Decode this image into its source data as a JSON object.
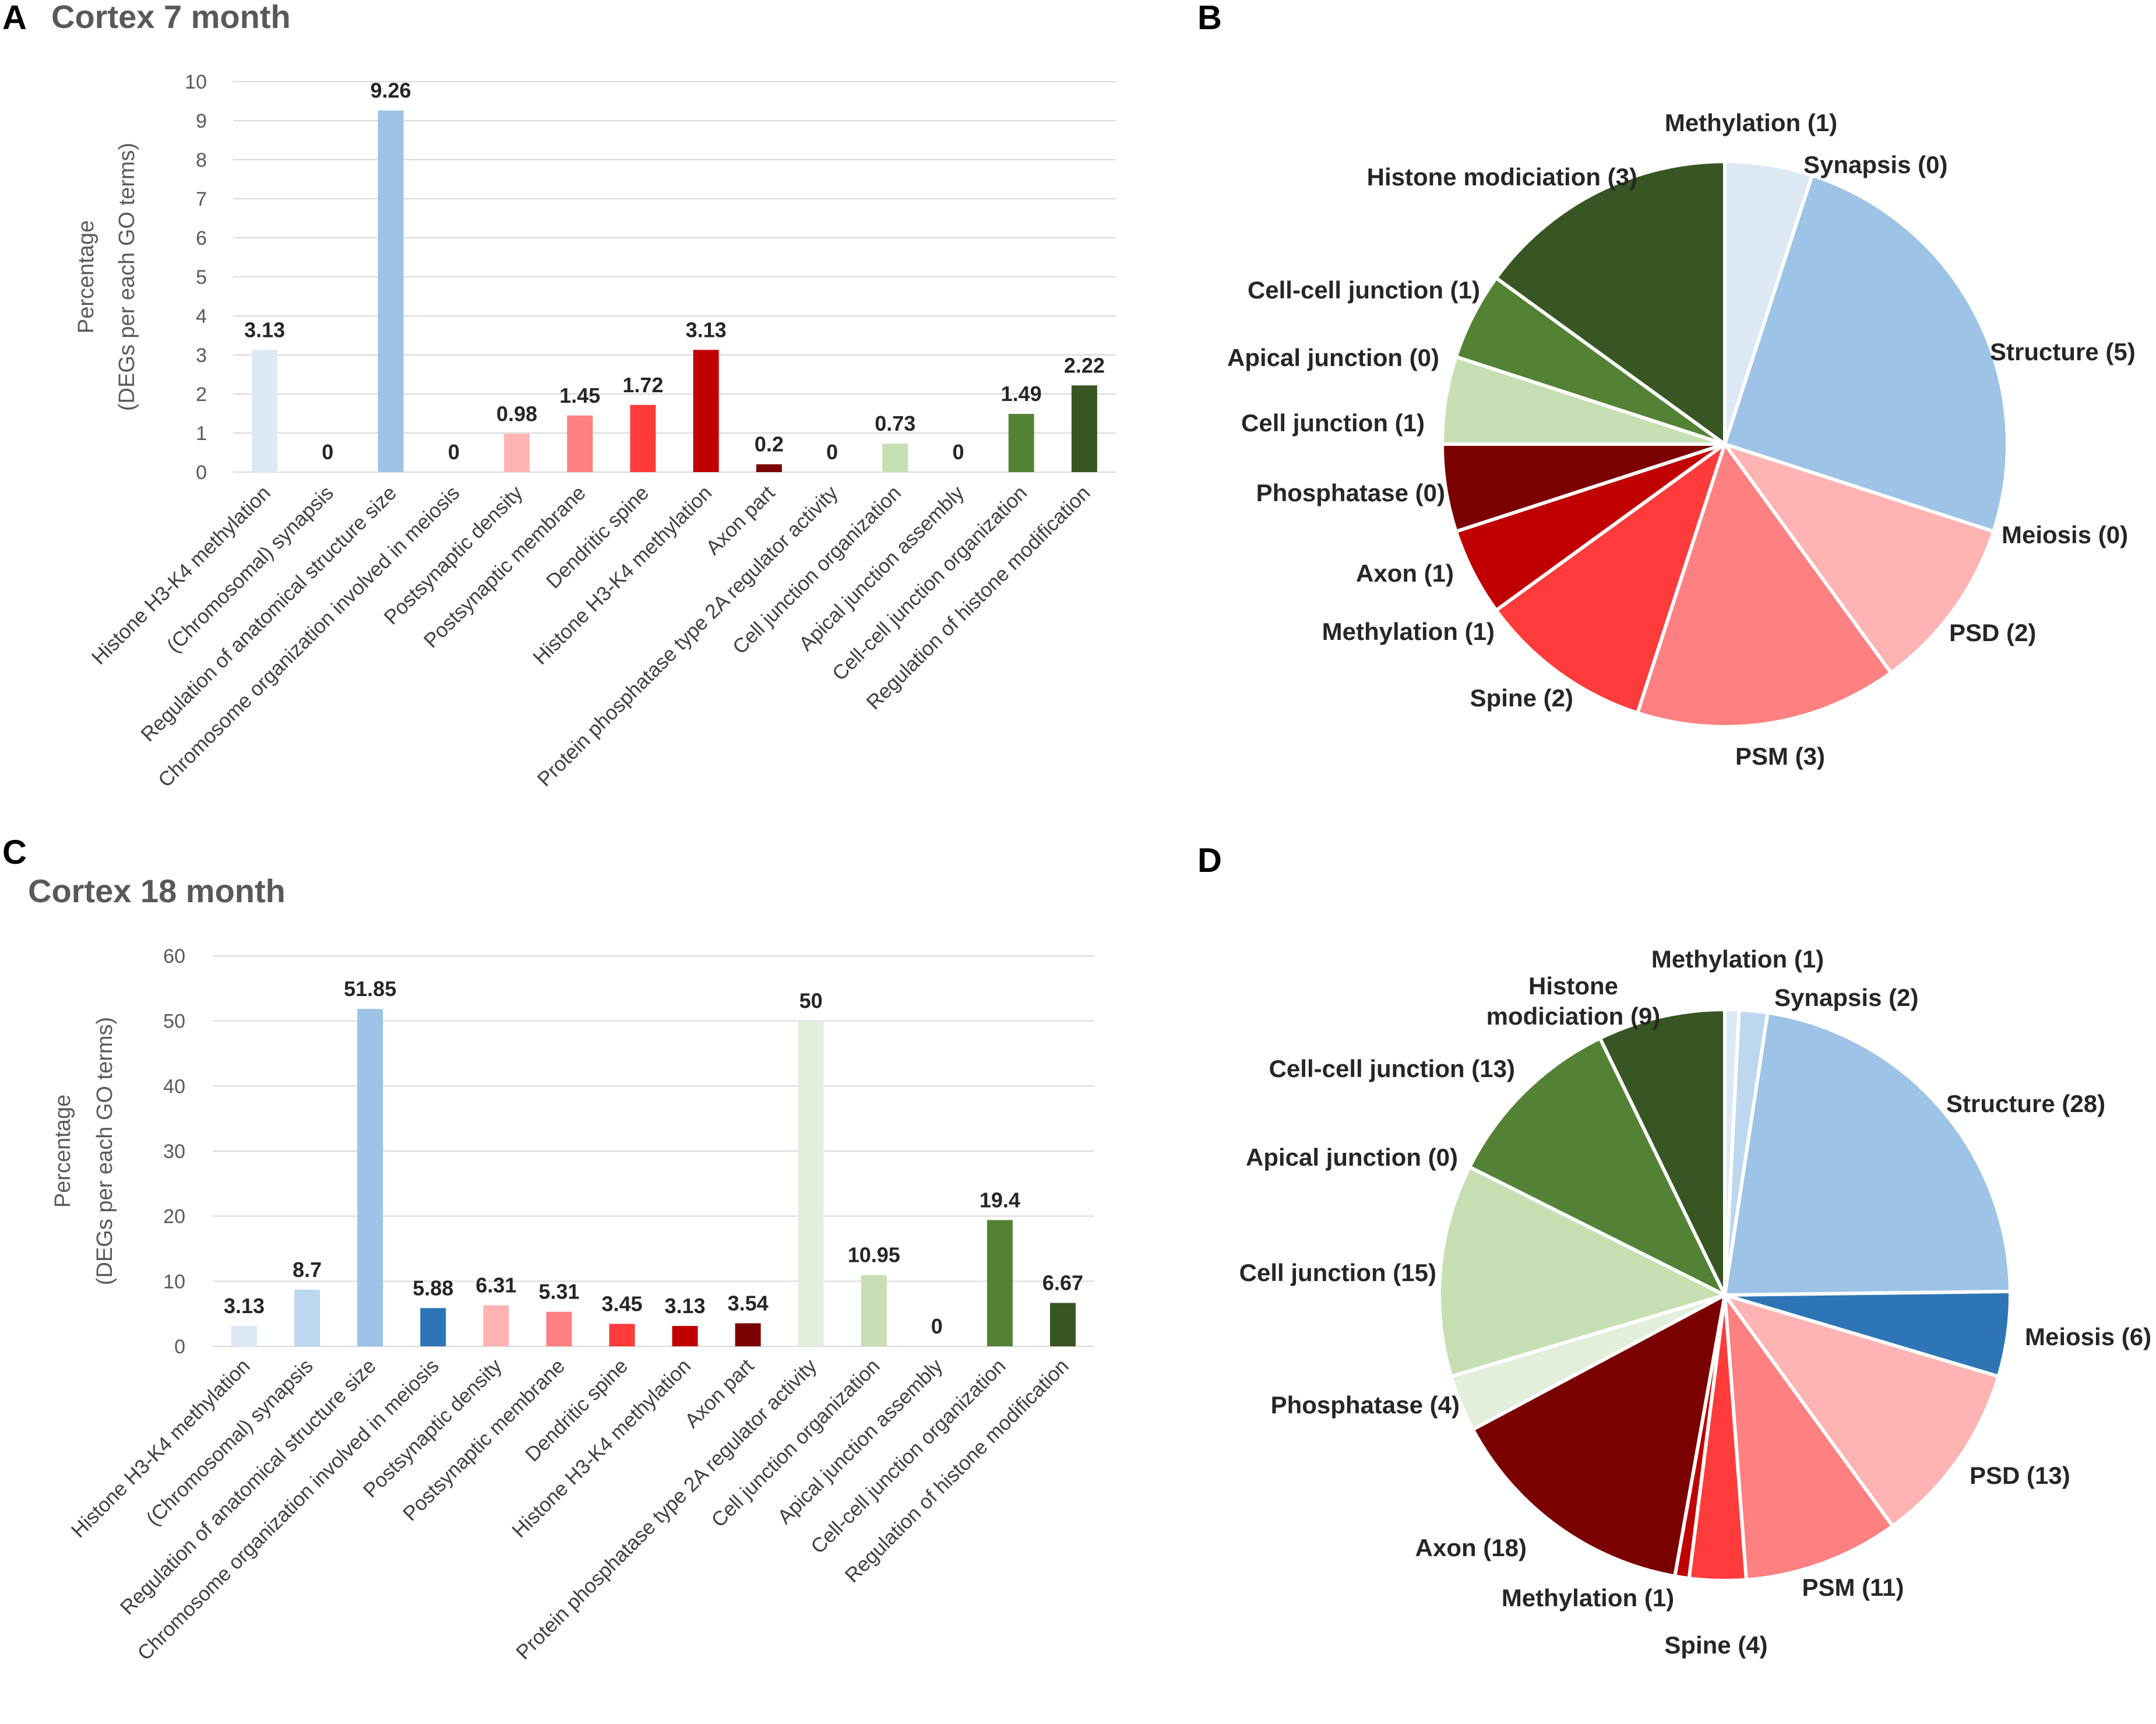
{
  "panels": {
    "A": {
      "letter": "A",
      "title": "Cortex 7 month"
    },
    "B": {
      "letter": "B"
    },
    "C": {
      "letter": "C",
      "title": "Cortex 18 month"
    },
    "D": {
      "letter": "D"
    }
  },
  "palette": [
    "#dde8f5",
    "#bdd7ee",
    "#9dc3e6",
    "#2e75b6",
    "#ffb3b3",
    "#ff8080",
    "#ff3b3b",
    "#c00000",
    "#7b0000",
    "#e2efda",
    "#c6e0b4",
    "#a9d08e",
    "#548235",
    "#375623"
  ],
  "chart_data": [
    {
      "id": "A",
      "type": "bar",
      "title": "Cortex 7 month",
      "ylabel_line1": "Percentage",
      "ylabel_line2": "(DEGs per each GO terms)",
      "ylim": [
        0,
        10
      ],
      "yticks": [
        "0",
        "1",
        "2",
        "3",
        "4",
        "5",
        "6",
        "7",
        "8",
        "9",
        "10"
      ],
      "categories": [
        "Histone H3-K4 methylation",
        "(Chromosomal) synapsis",
        "Regulation of anatomical structure size",
        "Chromosome organization involved in meiosis",
        "Postsynaptic density",
        "Postsynaptic membrane",
        "Dendritic spine",
        "Histone H3-K4 methylation",
        "Axon part",
        "Protein phosphatase type 2A regulator activity",
        "Cell junction organization",
        "Apical junction assembly",
        "Cell-cell junction organization",
        "Regulation of histone modification"
      ],
      "values": [
        3.13,
        0,
        9.26,
        0,
        0.98,
        1.45,
        1.72,
        3.13,
        0.2,
        0,
        0.73,
        0,
        1.49,
        2.22
      ],
      "value_labels": [
        "3.13",
        "0",
        "9.26",
        "0",
        "0.98",
        "1.45",
        "1.72",
        "3.13",
        "0.2",
        "0",
        "0.73",
        "0",
        "1.49",
        "2.22"
      ],
      "colors": [
        "#dde8f5",
        "#bdd7ee",
        "#9dc3e6",
        "#2e75b6",
        "#ffb3b3",
        "#ff8080",
        "#ff3b3b",
        "#c00000",
        "#7b0000",
        "#e2efda",
        "#c6e0b4",
        "#a9d08e",
        "#548235",
        "#375623"
      ]
    },
    {
      "id": "B",
      "type": "pie",
      "labels": [
        "Methylation (1)",
        "Synapsis (0)",
        "Structure (5)",
        "Meiosis (0)",
        "PSD (2)",
        "PSM (3)",
        "Spine (2)",
        "Methylation (1)",
        "Axon (1)",
        "Phosphatase (0)",
        "Cell junction (1)",
        "Apical junction (0)",
        "Cell-cell junction (1)",
        "Histone modiciation (3)"
      ],
      "values": [
        1,
        0,
        5,
        0,
        2,
        3,
        2,
        1,
        1,
        0,
        1,
        0,
        1,
        3
      ],
      "colors": [
        "#dde8f5",
        "#bdd7ee",
        "#9dc3e6",
        "#2e75b6",
        "#ffb3b3",
        "#ff8080",
        "#ff3b3b",
        "#c00000",
        "#7b0000",
        "#e2efda",
        "#c6e0b4",
        "#a9d08e",
        "#548235",
        "#375623"
      ]
    },
    {
      "id": "C",
      "type": "bar",
      "title": "Cortex 18 month",
      "ylabel_line1": "Percentage",
      "ylabel_line2": "(DEGs per each GO terms)",
      "ylim": [
        0,
        60
      ],
      "yticks": [
        "0",
        "10",
        "20",
        "30",
        "40",
        "50",
        "60"
      ],
      "categories": [
        "Histone H3-K4 methylation",
        "(Chromosomal) synapsis",
        "Regulation of anatomical structure size",
        "Chromosome organization involved in meiosis",
        "Postsynaptic density",
        "Postsynaptic membrane",
        "Dendritic spine",
        "Histone H3-K4 methylation",
        "Axon part",
        "Protein phosphatase type 2A regulator activity",
        "Cell junction organization",
        "Apical junction assembly",
        "Cell-cell junction organization",
        "Regulation of histone modification"
      ],
      "values": [
        3.13,
        8.7,
        51.85,
        5.88,
        6.31,
        5.31,
        3.45,
        3.13,
        3.54,
        50,
        10.95,
        0,
        19.4,
        6.67
      ],
      "value_labels": [
        "3.13",
        "8.7",
        "51.85",
        "5.88",
        "6.31",
        "5.31",
        "3.45",
        "3.13",
        "3.54",
        "50",
        "10.95",
        "0",
        "19.4",
        "6.67"
      ],
      "colors": [
        "#dde8f5",
        "#bdd7ee",
        "#9dc3e6",
        "#2e75b6",
        "#ffb3b3",
        "#ff8080",
        "#ff3b3b",
        "#c00000",
        "#7b0000",
        "#e2efda",
        "#c6e0b4",
        "#a9d08e",
        "#548235",
        "#375623"
      ]
    },
    {
      "id": "D",
      "type": "pie",
      "labels": [
        "Methylation (1)",
        "Synapsis (2)",
        "Structure (28)",
        "Meiosis (6)",
        "PSD (13)",
        "PSM (11)",
        "Spine (4)",
        "Methylation (1)",
        "Axon (18)",
        "Phosphatase (4)",
        "Cell junction (15)",
        "Apical junction (0)",
        "Cell-cell junction (13)",
        "Histone modiciation (9)"
      ],
      "values": [
        1,
        2,
        28,
        6,
        13,
        11,
        4,
        1,
        18,
        4,
        15,
        0,
        13,
        9
      ],
      "colors": [
        "#dde8f5",
        "#bdd7ee",
        "#9dc3e6",
        "#2e75b6",
        "#ffb3b3",
        "#ff8080",
        "#ff3b3b",
        "#c00000",
        "#7b0000",
        "#e2efda",
        "#c6e0b4",
        "#a9d08e",
        "#548235",
        "#375623"
      ]
    }
  ]
}
